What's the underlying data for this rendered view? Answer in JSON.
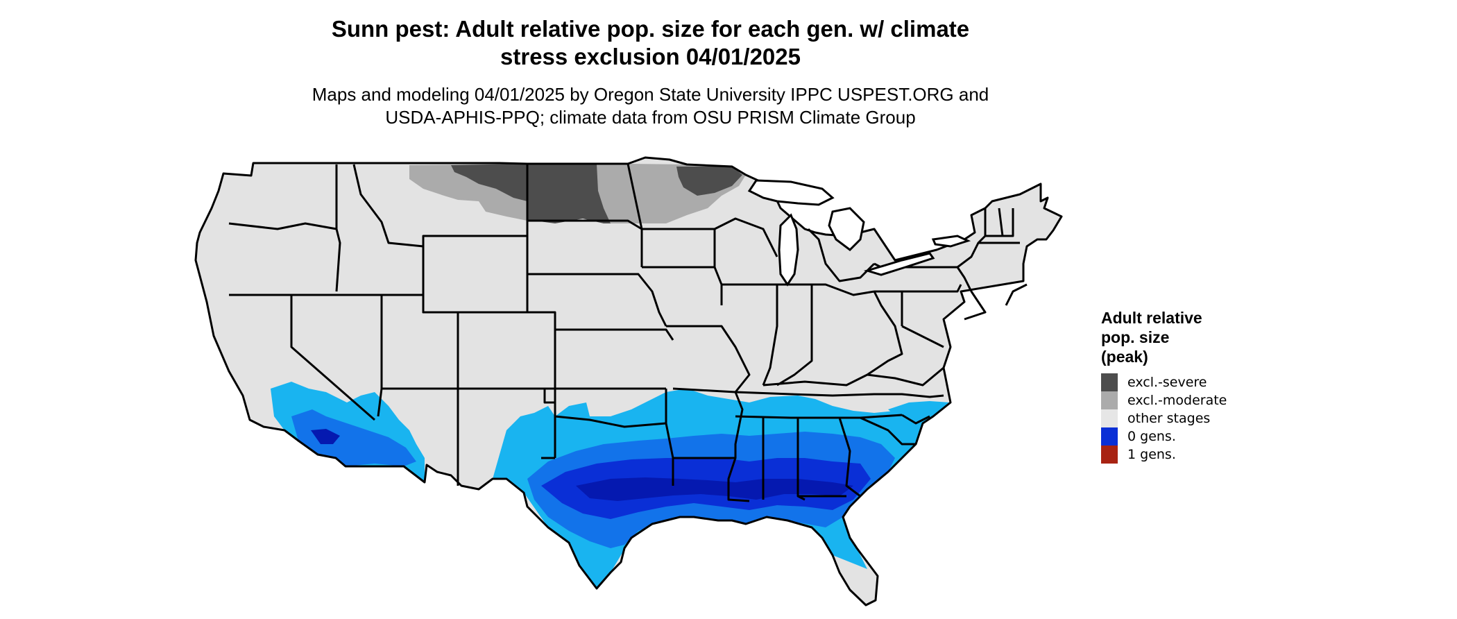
{
  "title": "Sunn pest: Adult relative pop. size for each gen. w/ climate\nstress exclusion 04/01/2025",
  "subtitle": "Maps and modeling 04/01/2025 by Oregon State University IPPC USPEST.ORG and\nUSDA-APHIS-PPQ; climate data from OSU PRISM Climate Group",
  "legend": {
    "title": "Adult relative\npop. size\n(peak)",
    "items": [
      {
        "label": "excl.-severe",
        "color": "#4d4d4d"
      },
      {
        "label": "excl.-moderate",
        "color": "#ababab"
      },
      {
        "label": "other stages",
        "color": "#e6e6e6"
      },
      {
        "label": "0 gens.",
        "color": "#0a2fd6"
      },
      {
        "label": "1 gens.",
        "color": "#a82313"
      }
    ]
  },
  "map_colors": {
    "land": "#e3e3e3",
    "border": "#000000",
    "light_blue": "#19b4f0",
    "mid_blue": "#1273ea",
    "dark_blue": "#0a2fd6",
    "navy": "#0519b0",
    "excl_severe": "#4d4d4d",
    "excl_moderate": "#ababab"
  }
}
